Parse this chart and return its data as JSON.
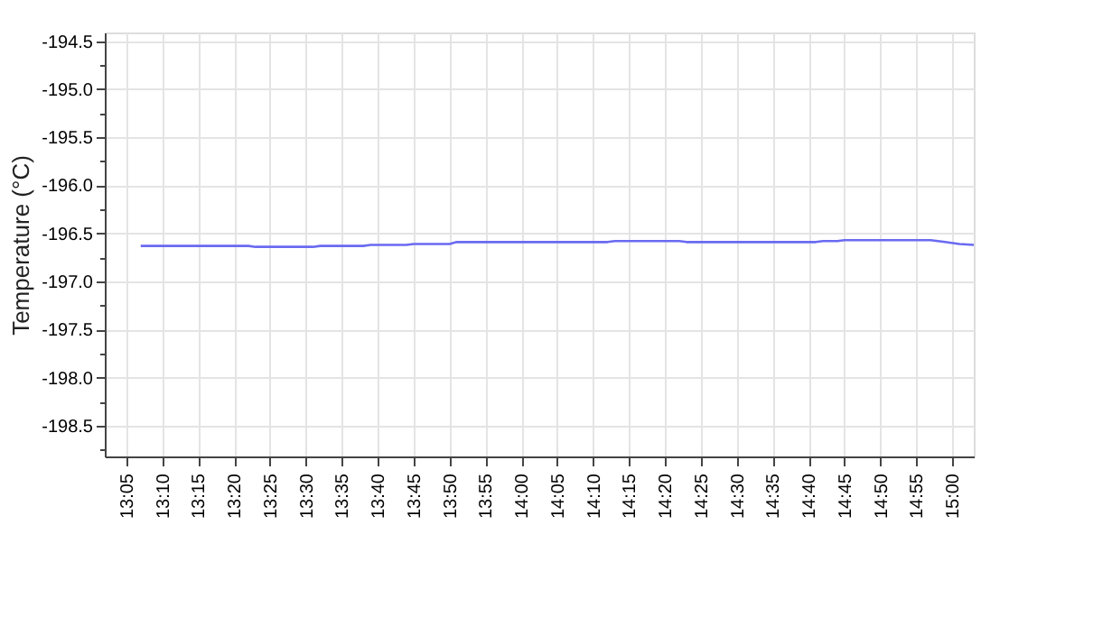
{
  "chart_data": {
    "type": "line",
    "ylabel": "Temperature (°C)",
    "x": [
      13.1167,
      13.3667,
      13.3833,
      13.5167,
      13.5333,
      13.6333,
      13.65,
      13.7333,
      13.75,
      13.8333,
      13.85,
      14.2,
      14.2167,
      14.3667,
      14.3833,
      14.6833,
      14.7,
      14.7333,
      14.75,
      14.95,
      14.9833,
      15.0167,
      15.05
    ],
    "series": [
      {
        "color": "#6a6af2",
        "values": [
          -196.63,
          -196.63,
          -196.64,
          -196.64,
          -196.63,
          -196.63,
          -196.62,
          -196.62,
          -196.61,
          -196.61,
          -196.59,
          -196.59,
          -196.58,
          -196.58,
          -196.59,
          -196.59,
          -196.58,
          -196.58,
          -196.57,
          -196.57,
          -196.59,
          -196.61,
          -196.62
        ]
      }
    ],
    "xlim": [
      13.0333,
      15.05
    ],
    "xticks": [
      {
        "value": 13.0833,
        "label": "13:05"
      },
      {
        "value": 13.1667,
        "label": "13:10"
      },
      {
        "value": 13.25,
        "label": "13:15"
      },
      {
        "value": 13.3333,
        "label": "13:20"
      },
      {
        "value": 13.4167,
        "label": "13:25"
      },
      {
        "value": 13.5,
        "label": "13:30"
      },
      {
        "value": 13.5833,
        "label": "13:35"
      },
      {
        "value": 13.6667,
        "label": "13:40"
      },
      {
        "value": 13.75,
        "label": "13:45"
      },
      {
        "value": 13.8333,
        "label": "13:50"
      },
      {
        "value": 13.9167,
        "label": "13:55"
      },
      {
        "value": 14,
        "label": "14:00"
      },
      {
        "value": 14.0833,
        "label": "14:05"
      },
      {
        "value": 14.1667,
        "label": "14:10"
      },
      {
        "value": 14.25,
        "label": "14:15"
      },
      {
        "value": 14.3333,
        "label": "14:20"
      },
      {
        "value": 14.4167,
        "label": "14:25"
      },
      {
        "value": 14.5,
        "label": "14:30"
      },
      {
        "value": 14.5833,
        "label": "14:35"
      },
      {
        "value": 14.6667,
        "label": "14:40"
      },
      {
        "value": 14.75,
        "label": "14:45"
      },
      {
        "value": 14.8333,
        "label": "14:50"
      },
      {
        "value": 14.9167,
        "label": "14:55"
      },
      {
        "value": 15,
        "label": "15:00"
      }
    ],
    "ylim": [
      -198.82,
      -194.41
    ],
    "yticks": [
      -194.5,
      {
        "value": -194.75,
        "label": null
      },
      {
        "value": -195,
        "label": "-195.0"
      },
      {
        "value": -195.25,
        "label": null
      },
      -195.5,
      {
        "value": -195.75,
        "label": null
      },
      {
        "value": -196,
        "label": "-196.0"
      },
      {
        "value": -196.25,
        "label": null
      },
      -196.5,
      {
        "value": -196.75,
        "label": null
      },
      {
        "value": -197,
        "label": "-197.0"
      },
      {
        "value": -197.25,
        "label": null
      },
      -197.5,
      {
        "value": -197.75,
        "label": null
      },
      {
        "value": -198,
        "label": "-198.0"
      },
      {
        "value": -198.25,
        "label": null
      },
      -198.5,
      {
        "value": -198.75,
        "label": null
      }
    ],
    "grid": true,
    "marker": "none",
    "line_style": "solid"
  }
}
